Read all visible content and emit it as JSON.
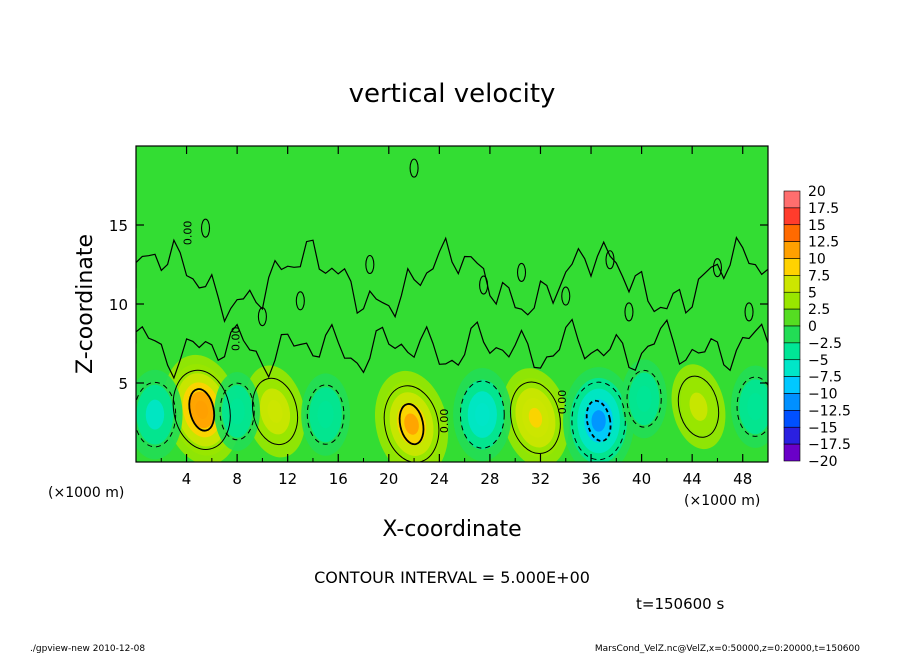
{
  "chart_data": {
    "type": "heatmap",
    "title": "vertical velocity",
    "xlabel": "X-coordinate",
    "ylabel": "Z-coordinate",
    "x_unit": "(×1000 m)",
    "x_unit_right": "(×1000 m)",
    "xlim": [
      0,
      50
    ],
    "ylim": [
      0,
      20
    ],
    "x_ticks": [
      "4",
      "8",
      "12",
      "16",
      "20",
      "24",
      "28",
      "32",
      "36",
      "40",
      "44",
      "48"
    ],
    "y_ticks": [
      "5",
      "10",
      "15"
    ],
    "contour_interval_text": "CONTOUR INTERVAL = 5.000E+00",
    "time_text": "t=150600 s",
    "contour_labels": [
      "0.00",
      "0.00",
      "0.00",
      "0.00"
    ],
    "colorbar": {
      "labels": [
        "20",
        "17.5",
        "15",
        "12.5",
        "10",
        "7.5",
        "5",
        "2.5",
        "0",
        "−2.5",
        "−5",
        "−7.5",
        "−10",
        "−12.5",
        "−15",
        "−17.5",
        "−20"
      ],
      "values": [
        20,
        17.5,
        15,
        12.5,
        10,
        7.5,
        5,
        2.5,
        0,
        -2.5,
        -5,
        -7.5,
        -10,
        -12.5,
        -15,
        -17.5,
        -20
      ]
    },
    "cells": [
      {
        "x": 5.2,
        "z": 3.3,
        "w": 12
      },
      {
        "x": 11.0,
        "z": 3.2,
        "w": 7
      },
      {
        "x": 21.8,
        "z": 2.4,
        "w": 11
      },
      {
        "x": 31.6,
        "z": 2.8,
        "w": 9
      },
      {
        "x": 44.5,
        "z": 3.5,
        "w": 5
      },
      {
        "x": 1.5,
        "z": 3.0,
        "w": -6
      },
      {
        "x": 8.0,
        "z": 3.2,
        "w": -3
      },
      {
        "x": 15.0,
        "z": 3.0,
        "w": -4
      },
      {
        "x": 27.4,
        "z": 3.0,
        "w": -7
      },
      {
        "x": 36.6,
        "z": 2.6,
        "w": -11
      },
      {
        "x": 40.2,
        "z": 4.0,
        "w": -3
      },
      {
        "x": 49.0,
        "z": 3.5,
        "w": -4
      }
    ]
  },
  "footer": {
    "left": "./gpview-new   2010-12-08",
    "right": "MarsCond_VelZ.nc@VelZ,x=0:50000,z=0:20000,t=150600"
  },
  "colors": {
    "background_field": "#33dd33",
    "contour_line": "#000000"
  }
}
